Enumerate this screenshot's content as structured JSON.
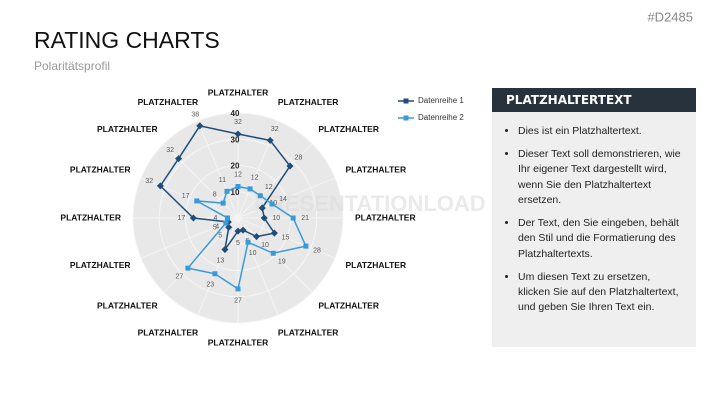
{
  "slide": {
    "id": "#D2485",
    "title": "RATING CHARTS",
    "subtitle": "Polaritätsprofil",
    "watermark": "PRESENTATIONLOAD"
  },
  "chart_data": {
    "type": "radar",
    "categories": [
      "PLATZHALTER",
      "PLATZHALTER",
      "PLATZHALTER",
      "PLATZHALTER",
      "PLATZHALTER",
      "PLATZHALTER",
      "PLATZHALTER",
      "PLATZHALTER",
      "PLATZHALTER",
      "PLATZHALTER",
      "PLATZHALTER",
      "PLATZHALTER",
      "PLATZHALTER",
      "PLATZHALTER",
      "PLATZHALTER",
      "PLATZHALTER"
    ],
    "series": [
      {
        "name": "Datenreihe 1",
        "color": "#1f4e79",
        "values": [
          32,
          32,
          28,
          10,
          10,
          15,
          10,
          5,
          5,
          13,
          5,
          4,
          17,
          32,
          32,
          38
        ]
      },
      {
        "name": "Datenreihe 2",
        "color": "#3a9ad9",
        "values": [
          12,
          12,
          12,
          14,
          21,
          28,
          19,
          10,
          27,
          23,
          27,
          5,
          4,
          17,
          8,
          11
        ]
      }
    ],
    "rlim": [
      0,
      40
    ],
    "rticks": [
      10,
      20,
      30,
      40
    ],
    "legend": "top-right"
  },
  "panel": {
    "title": "PLATZHALTERTEXT",
    "bullets": [
      "Dies ist ein Platzhaltertext.",
      "Dieser Text soll demonstrieren, wie Ihr eigener Text dargestellt wird, wenn Sie den Platzhaltertext ersetzen.",
      "Der Text, den Sie eingeben, behält den Stil und die Formatierung des Platzhaltertexts.",
      "Um diesen Text zu ersetzen, klicken Sie auf den Platzhaltertext, und geben Sie Ihren Text ein."
    ]
  }
}
